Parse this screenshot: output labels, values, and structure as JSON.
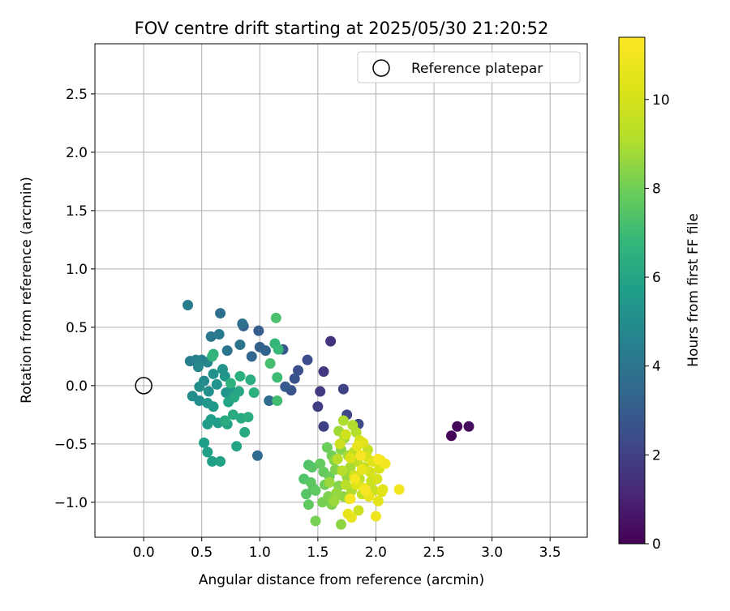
{
  "chart_data": {
    "type": "scatter",
    "title": "FOV centre drift starting at 2025/05/30 21:20:52",
    "xlabel": "Angular distance from reference (arcmin)",
    "ylabel": "Rotation from reference (arcmin)",
    "xlim": [
      -0.42,
      3.82
    ],
    "ylim": [
      -1.3,
      2.93
    ],
    "xticks": [
      0.0,
      0.5,
      1.0,
      1.5,
      2.0,
      2.5,
      3.0,
      3.5
    ],
    "xtick_labels": [
      "0.0",
      "0.5",
      "1.0",
      "1.5",
      "2.0",
      "2.5",
      "3.0",
      "3.5"
    ],
    "yticks": [
      -1.0,
      -0.5,
      0.0,
      0.5,
      1.0,
      1.5,
      2.0,
      2.5
    ],
    "ytick_labels": [
      "−1.0",
      "−0.5",
      "0.0",
      "0.5",
      "1.0",
      "1.5",
      "2.0",
      "2.5"
    ],
    "grid": true,
    "legend": {
      "position": "upper right",
      "entries": [
        "Reference platepar"
      ]
    },
    "reference_point": {
      "x": 0.0,
      "y": 0.0
    },
    "colorbar": {
      "label": "Hours from first FF file",
      "colormap": "viridis",
      "range": [
        0,
        11.4
      ],
      "ticks": [
        0,
        2,
        4,
        6,
        8,
        10
      ],
      "tick_labels": [
        "0",
        "2",
        "4",
        "6",
        "8",
        "10"
      ]
    },
    "series": [
      {
        "points": [
          [
            2.65,
            -0.43,
            0.1
          ],
          [
            2.7,
            -0.35,
            0.2
          ],
          [
            2.8,
            -0.35,
            0.3
          ],
          [
            1.61,
            0.38,
            1.5
          ],
          [
            1.55,
            0.12,
            1.7
          ],
          [
            1.52,
            -0.05,
            1.8
          ],
          [
            1.5,
            -0.18,
            1.9
          ],
          [
            1.55,
            -0.35,
            2.0
          ],
          [
            1.72,
            -0.03,
            2.1
          ],
          [
            1.75,
            -0.25,
            2.2
          ],
          [
            1.85,
            -0.33,
            2.3
          ],
          [
            1.41,
            0.22,
            2.4
          ],
          [
            1.33,
            0.13,
            2.5
          ],
          [
            1.3,
            0.06,
            2.6
          ],
          [
            1.27,
            -0.04,
            2.7
          ],
          [
            1.2,
            0.31,
            2.8
          ],
          [
            1.22,
            -0.01,
            2.9
          ],
          [
            0.99,
            0.47,
            3.0
          ],
          [
            0.86,
            0.51,
            3.1
          ],
          [
            1.0,
            0.33,
            3.2
          ],
          [
            1.05,
            0.3,
            3.3
          ],
          [
            0.93,
            0.25,
            3.4
          ],
          [
            0.98,
            -0.6,
            3.5
          ],
          [
            1.08,
            -0.13,
            3.6
          ],
          [
            0.66,
            0.62,
            3.7
          ],
          [
            0.85,
            0.53,
            3.8
          ],
          [
            0.83,
            0.35,
            3.9
          ],
          [
            0.72,
            0.3,
            4.0
          ],
          [
            0.58,
            0.42,
            4.1
          ],
          [
            0.65,
            0.44,
            4.2
          ],
          [
            0.38,
            0.69,
            4.3
          ],
          [
            0.4,
            0.21,
            4.4
          ],
          [
            0.45,
            0.22,
            4.5
          ],
          [
            0.5,
            0.22,
            4.6
          ],
          [
            0.55,
            0.2,
            4.7
          ],
          [
            0.47,
            0.16,
            4.8
          ],
          [
            0.52,
            0.04,
            4.9
          ],
          [
            0.48,
            -0.01,
            5.0
          ],
          [
            0.42,
            -0.09,
            5.0
          ],
          [
            0.48,
            -0.13,
            5.1
          ],
          [
            0.56,
            -0.05,
            5.1
          ],
          [
            0.6,
            0.1,
            5.2
          ],
          [
            0.68,
            0.14,
            5.2
          ],
          [
            0.63,
            0.01,
            5.3
          ],
          [
            0.71,
            -0.06,
            5.3
          ],
          [
            0.7,
            0.08,
            5.4
          ],
          [
            0.75,
            -0.04,
            5.4
          ],
          [
            0.55,
            -0.15,
            5.5
          ],
          [
            0.6,
            -0.18,
            5.5
          ],
          [
            0.64,
            -0.32,
            5.6
          ],
          [
            0.55,
            -0.33,
            5.6
          ],
          [
            0.58,
            -0.29,
            5.7
          ],
          [
            0.52,
            -0.49,
            5.7
          ],
          [
            0.55,
            -0.57,
            5.8
          ],
          [
            0.59,
            -0.65,
            5.8
          ],
          [
            0.66,
            -0.65,
            5.9
          ],
          [
            0.72,
            -0.33,
            5.9
          ],
          [
            0.8,
            -0.52,
            6.0
          ],
          [
            0.73,
            -0.14,
            6.0
          ],
          [
            0.78,
            -0.1,
            6.1
          ],
          [
            0.82,
            -0.05,
            6.1
          ],
          [
            0.87,
            -0.4,
            6.2
          ],
          [
            0.84,
            -0.28,
            6.2
          ],
          [
            0.77,
            -0.25,
            6.3
          ],
          [
            0.7,
            -0.3,
            6.3
          ],
          [
            0.9,
            -0.27,
            6.4
          ],
          [
            0.92,
            0.05,
            6.4
          ],
          [
            0.95,
            -0.06,
            6.5
          ],
          [
            0.83,
            0.08,
            6.5
          ],
          [
            0.75,
            0.02,
            6.6
          ],
          [
            0.6,
            0.27,
            6.6
          ],
          [
            0.59,
            0.25,
            6.7
          ],
          [
            1.13,
            0.36,
            6.8
          ],
          [
            1.16,
            0.31,
            6.9
          ],
          [
            1.15,
            0.07,
            7.0
          ],
          [
            1.15,
            -0.13,
            7.1
          ],
          [
            1.09,
            0.19,
            7.2
          ],
          [
            1.14,
            0.58,
            7.3
          ],
          [
            1.38,
            -0.8,
            7.4
          ],
          [
            1.42,
            -0.68,
            7.4
          ],
          [
            1.45,
            -0.7,
            7.5
          ],
          [
            1.4,
            -0.93,
            7.5
          ],
          [
            1.44,
            -0.83,
            7.6
          ],
          [
            1.46,
            -0.88,
            7.6
          ],
          [
            1.42,
            -1.02,
            7.7
          ],
          [
            1.48,
            -0.9,
            7.7
          ],
          [
            1.52,
            -0.67,
            7.8
          ],
          [
            1.55,
            -0.74,
            7.8
          ],
          [
            1.58,
            -0.53,
            7.9
          ],
          [
            1.6,
            -0.78,
            7.9
          ],
          [
            1.62,
            -0.6,
            8.0
          ],
          [
            1.56,
            -0.85,
            8.0
          ],
          [
            1.48,
            -1.16,
            8.1
          ],
          [
            1.54,
            -1.0,
            8.1
          ],
          [
            1.59,
            -0.95,
            8.2
          ],
          [
            1.62,
            -1.02,
            8.2
          ],
          [
            1.65,
            -0.72,
            8.3
          ],
          [
            1.68,
            -0.86,
            8.3
          ],
          [
            1.64,
            -0.64,
            8.4
          ],
          [
            1.7,
            -0.55,
            8.4
          ],
          [
            1.7,
            -1.19,
            8.5
          ],
          [
            1.72,
            -0.95,
            8.5
          ],
          [
            1.66,
            -0.92,
            8.6
          ],
          [
            1.75,
            -0.78,
            8.6
          ],
          [
            1.6,
            -0.83,
            8.7
          ],
          [
            1.64,
            -0.99,
            8.7
          ],
          [
            1.68,
            -0.39,
            8.8
          ],
          [
            1.73,
            -0.45,
            8.8
          ],
          [
            1.76,
            -0.6,
            8.9
          ],
          [
            1.78,
            -0.7,
            8.9
          ],
          [
            1.79,
            -0.9,
            9.0
          ],
          [
            1.72,
            -0.3,
            9.0
          ],
          [
            1.8,
            -0.34,
            9.1
          ],
          [
            1.83,
            -0.4,
            9.1
          ],
          [
            1.67,
            -0.63,
            9.2
          ],
          [
            1.71,
            -0.73,
            9.2
          ],
          [
            1.74,
            -0.85,
            9.3
          ],
          [
            1.77,
            -0.97,
            9.3
          ],
          [
            1.81,
            -0.57,
            9.4
          ],
          [
            1.84,
            -0.65,
            9.4
          ],
          [
            1.86,
            -0.8,
            9.5
          ],
          [
            1.88,
            -0.93,
            9.5
          ],
          [
            1.9,
            -0.7,
            9.6
          ],
          [
            1.93,
            -0.55,
            9.6
          ],
          [
            1.96,
            -0.82,
            9.7
          ],
          [
            1.98,
            -0.9,
            9.7
          ],
          [
            1.85,
            -1.07,
            9.8
          ],
          [
            1.69,
            -0.5,
            9.8
          ],
          [
            1.74,
            -0.42,
            9.9
          ],
          [
            1.81,
            -0.77,
            9.9
          ],
          [
            1.86,
            -0.47,
            10.0
          ],
          [
            1.92,
            -0.61,
            10.0
          ],
          [
            1.95,
            -0.74,
            10.1
          ],
          [
            2.01,
            -0.8,
            10.1
          ],
          [
            2.03,
            -0.71,
            10.2
          ],
          [
            2.05,
            -0.91,
            10.2
          ],
          [
            1.78,
            -0.62,
            10.3
          ],
          [
            1.83,
            -0.85,
            10.3
          ],
          [
            1.89,
            -0.49,
            10.4
          ],
          [
            1.97,
            -0.65,
            10.4
          ],
          [
            2.02,
            -0.99,
            10.5
          ],
          [
            2.06,
            -0.89,
            10.5
          ],
          [
            1.76,
            -1.1,
            10.6
          ],
          [
            1.79,
            -1.13,
            10.6
          ],
          [
            1.84,
            -0.52,
            10.7
          ],
          [
            1.88,
            -0.72,
            10.7
          ],
          [
            1.9,
            -0.88,
            10.8
          ],
          [
            1.94,
            -0.95,
            10.8
          ],
          [
            2.0,
            -1.12,
            10.9
          ],
          [
            2.04,
            -0.64,
            10.9
          ],
          [
            2.08,
            -0.67,
            11.0
          ],
          [
            2.2,
            -0.89,
            11.0
          ],
          [
            1.78,
            -0.97,
            11.1
          ],
          [
            1.82,
            -0.8,
            11.1
          ],
          [
            1.87,
            -0.6,
            11.2
          ],
          [
            1.91,
            -0.9,
            11.2
          ],
          [
            2.02,
            -0.63,
            11.3
          ]
        ]
      }
    ]
  }
}
